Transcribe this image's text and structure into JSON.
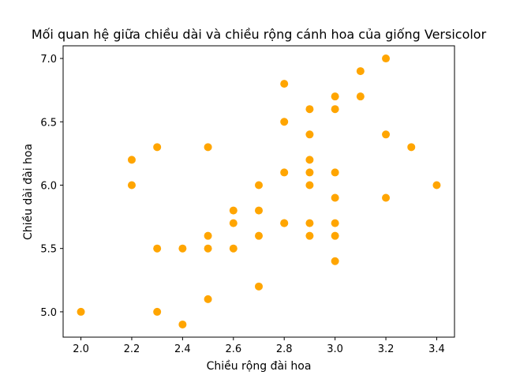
{
  "chart_data": {
    "type": "scatter",
    "title": "Mối quan hệ giữa chiều dài và chiều rộng cánh hoa của giống Versicolor",
    "xlabel": "Chiều rộng đài hoa",
    "ylabel": "Chiều dài đài hoa",
    "xlim": [
      1.93,
      3.47
    ],
    "ylim": [
      4.8,
      7.1
    ],
    "xticks": [
      "2.0",
      "2.2",
      "2.4",
      "2.6",
      "2.8",
      "3.0",
      "3.2",
      "3.4"
    ],
    "yticks": [
      "5.0",
      "5.5",
      "6.0",
      "6.5",
      "7.0"
    ],
    "grid": false,
    "marker_color": "#ffa500",
    "points": [
      {
        "x": 3.2,
        "y": 7.0
      },
      {
        "x": 3.2,
        "y": 6.4
      },
      {
        "x": 3.1,
        "y": 6.9
      },
      {
        "x": 2.3,
        "y": 5.5
      },
      {
        "x": 2.8,
        "y": 6.5
      },
      {
        "x": 2.8,
        "y": 5.7
      },
      {
        "x": 3.3,
        "y": 6.3
      },
      {
        "x": 2.4,
        "y": 4.9
      },
      {
        "x": 2.9,
        "y": 6.6
      },
      {
        "x": 2.7,
        "y": 5.2
      },
      {
        "x": 2.0,
        "y": 5.0
      },
      {
        "x": 3.0,
        "y": 5.9
      },
      {
        "x": 2.2,
        "y": 6.0
      },
      {
        "x": 2.9,
        "y": 6.1
      },
      {
        "x": 2.9,
        "y": 5.6
      },
      {
        "x": 3.1,
        "y": 6.7
      },
      {
        "x": 3.0,
        "y": 5.6
      },
      {
        "x": 2.7,
        "y": 5.8
      },
      {
        "x": 2.2,
        "y": 6.2
      },
      {
        "x": 2.5,
        "y": 5.6
      },
      {
        "x": 3.2,
        "y": 5.9
      },
      {
        "x": 2.8,
        "y": 6.1
      },
      {
        "x": 2.5,
        "y": 6.3
      },
      {
        "x": 2.9,
        "y": 6.4
      },
      {
        "x": 3.0,
        "y": 6.6
      },
      {
        "x": 2.8,
        "y": 6.8
      },
      {
        "x": 3.0,
        "y": 6.7
      },
      {
        "x": 2.9,
        "y": 6.0
      },
      {
        "x": 2.6,
        "y": 5.7
      },
      {
        "x": 2.4,
        "y": 5.5
      },
      {
        "x": 2.7,
        "y": 6.0
      },
      {
        "x": 3.0,
        "y": 5.4
      },
      {
        "x": 3.4,
        "y": 6.0
      },
      {
        "x": 2.3,
        "y": 6.3
      },
      {
        "x": 3.0,
        "y": 6.1
      },
      {
        "x": 2.5,
        "y": 5.5
      },
      {
        "x": 2.6,
        "y": 5.5
      },
      {
        "x": 2.6,
        "y": 5.8
      },
      {
        "x": 2.3,
        "y": 5.0
      },
      {
        "x": 2.7,
        "y": 5.6
      },
      {
        "x": 3.0,
        "y": 5.7
      },
      {
        "x": 2.9,
        "y": 6.2
      },
      {
        "x": 2.5,
        "y": 5.1
      },
      {
        "x": 2.8,
        "y": 5.7
      },
      {
        "x": 2.9,
        "y": 5.7
      }
    ]
  }
}
